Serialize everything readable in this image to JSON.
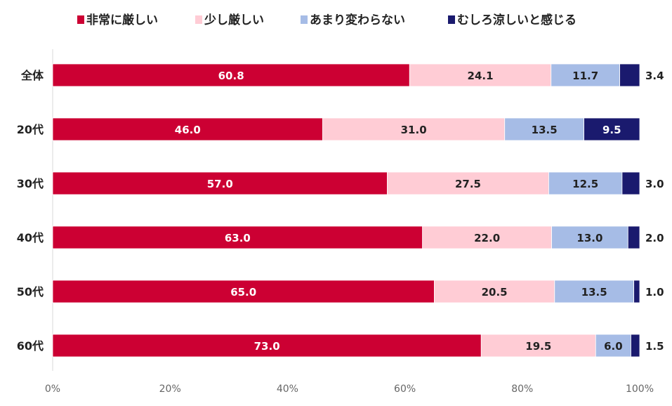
{
  "chart_data": {
    "type": "bar",
    "orientation": "horizontal",
    "stacked": "percent",
    "title": "",
    "xlabel": "",
    "ylabel": "",
    "xlim": [
      0,
      100
    ],
    "x_ticks": [
      "0%",
      "20%",
      "40%",
      "60%",
      "80%",
      "100%"
    ],
    "grid": false,
    "legend_position": "top",
    "categories": [
      "全体",
      "20代",
      "30代",
      "40代",
      "50代",
      "60代"
    ],
    "series": [
      {
        "name": "非常に厳しい",
        "color": "#CC0033",
        "label_color": "#ffffff",
        "values": [
          60.8,
          46.0,
          57.0,
          63.0,
          65.0,
          73.0
        ]
      },
      {
        "name": "少し厳しい",
        "color": "#FFCCD5",
        "label_color": "#222222",
        "values": [
          24.1,
          31.0,
          27.5,
          22.0,
          20.5,
          19.5
        ]
      },
      {
        "name": "あまり変わらない",
        "color": "#A6BCE6",
        "label_color": "#222222",
        "values": [
          11.7,
          13.5,
          12.5,
          13.0,
          13.5,
          6.0
        ]
      },
      {
        "name": "むしろ涼しいと感じる",
        "color": "#1A1A6E",
        "label_color": "#ffffff",
        "values": [
          3.4,
          9.5,
          3.0,
          2.0,
          1.0,
          1.5
        ]
      }
    ]
  }
}
